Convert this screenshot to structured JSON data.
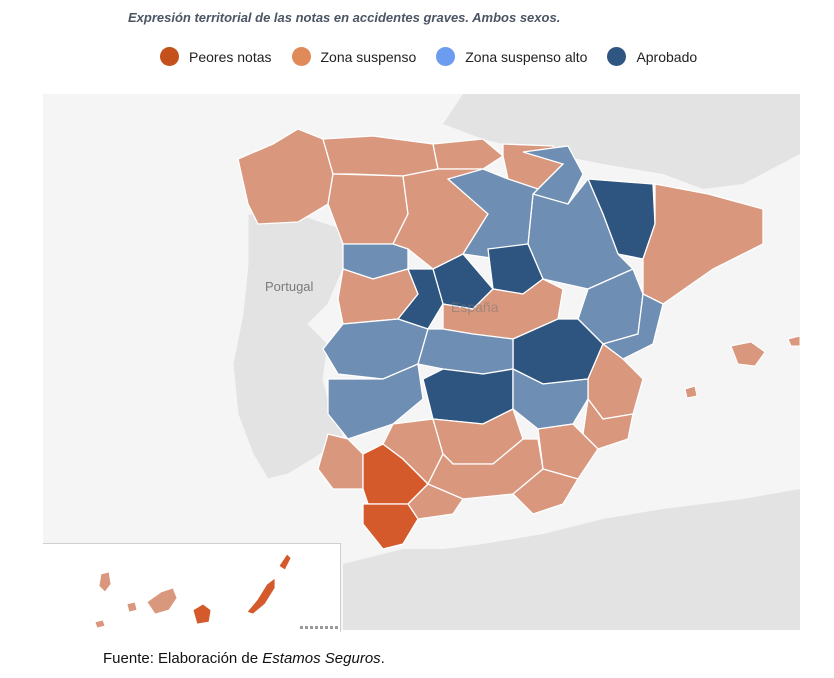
{
  "title": "Expresión territorial de las notas en accidentes graves. Ambos sexos.",
  "legend": [
    {
      "label": "Peores notas",
      "color": "#c4501b"
    },
    {
      "label": "Zona suspenso",
      "color": "#e08a5a"
    },
    {
      "label": "Zona suspenso alto",
      "color": "#6b9cf0"
    },
    {
      "label": "Aprobado",
      "color": "#2f5681"
    }
  ],
  "map": {
    "country_label": "Portugal",
    "spain_label": "España"
  },
  "source": {
    "prefix": "Fuente: Elaboración de",
    "name": "Estamos Seguros",
    "suffix": "."
  },
  "colors": {
    "peores": "#d4592b",
    "suspenso": "#d9977d",
    "suspenso_alto": "#6f8eb3",
    "aprobado": "#2e5580",
    "land": "#e3e3e3",
    "sea": "#f5f5f5"
  }
}
